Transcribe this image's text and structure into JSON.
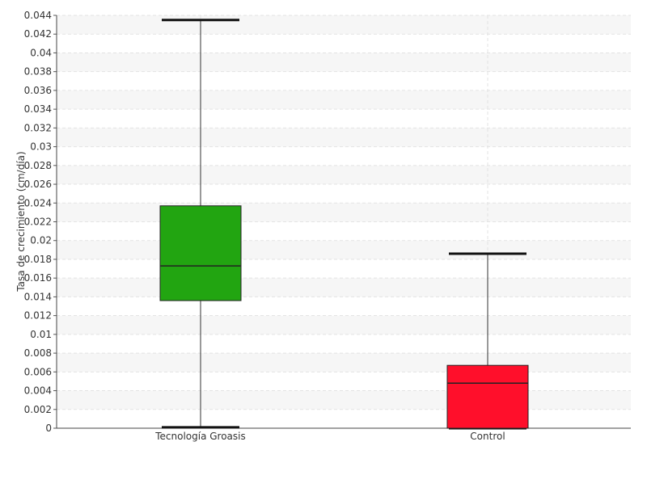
{
  "chart_data": {
    "type": "boxplot",
    "title": "",
    "xlabel": "",
    "ylabel": "Tasa de crecimiento (cm/día)",
    "ylim": [
      0,
      0.044
    ],
    "ytick_step": 0.002,
    "grid": true,
    "categories": [
      "Tecnología Groasis",
      "Control"
    ],
    "boxes": [
      {
        "category": "Tecnología Groasis",
        "whisker_low": 0.0001,
        "q1": 0.0136,
        "median": 0.0173,
        "q3": 0.0237,
        "whisker_high": 0.0435,
        "color": "#22a511"
      },
      {
        "category": "Control",
        "whisker_low": 0.0,
        "q1": 0.0,
        "median": 0.0048,
        "q3": 0.0067,
        "whisker_high": 0.0186,
        "color": "#ff0f2b"
      }
    ]
  }
}
